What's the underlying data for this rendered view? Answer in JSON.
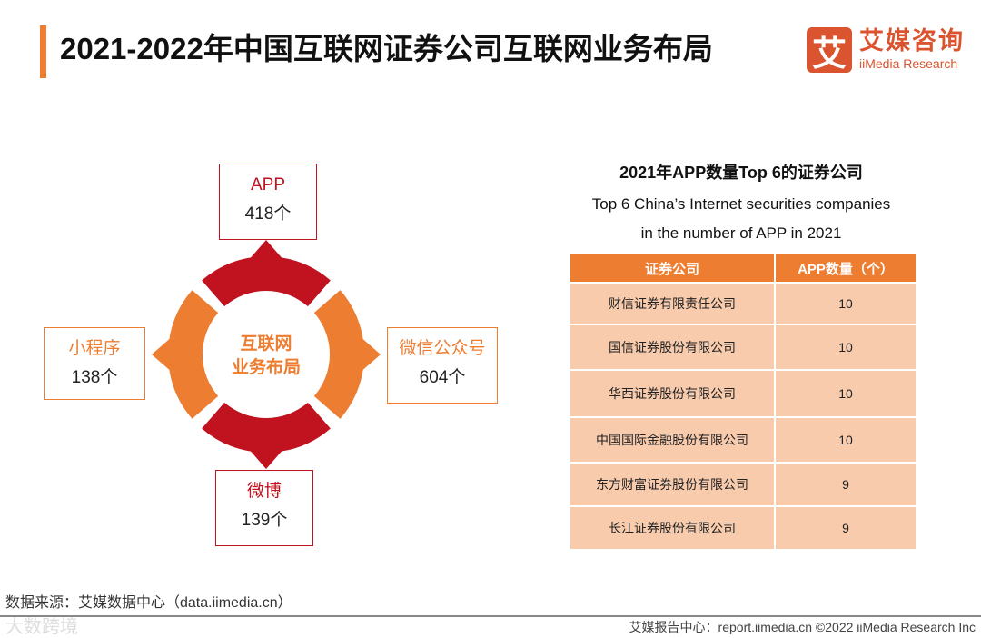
{
  "title": "2021-2022年中国互联网证券公司互联网业务布局",
  "logo": {
    "mark": "艾",
    "cn": "艾媒咨询",
    "en": "iiMedia Research"
  },
  "diagram": {
    "center": [
      "互联网",
      "业务布局"
    ],
    "nodes": [
      {
        "name": "APP",
        "value": "418个"
      },
      {
        "name": "微信公众号",
        "value": "604个"
      },
      {
        "name": "微博",
        "value": "139个"
      },
      {
        "name": "小程序",
        "value": "138个"
      }
    ],
    "colors": {
      "red": "#c0121f",
      "orange": "#ed7d31"
    }
  },
  "table": {
    "title": "2021年APP数量Top 6的证券公司",
    "subtitle1": "Top 6 China’s Internet securities companies",
    "subtitle2": "in the number of APP in 2021",
    "headers": [
      "证券公司",
      "APP数量（个）"
    ],
    "rows": [
      [
        "财信证券有限责任公司",
        "10"
      ],
      [
        "国信证券股份有限公司",
        "10"
      ],
      [
        "华西证券股份有限公司",
        "10"
      ],
      [
        "中国国际金融股份有限公司",
        "10"
      ],
      [
        "东方财富证券股份有限公司",
        "9"
      ],
      [
        "长江证券股份有限公司",
        "9"
      ]
    ]
  },
  "source": "数据来源：艾媒数据中心（data.iimedia.cn）",
  "footer": "艾媒报告中心：report.iimedia.cn   ©2022  iiMedia Research  Inc",
  "watermark": "大数跨境"
}
